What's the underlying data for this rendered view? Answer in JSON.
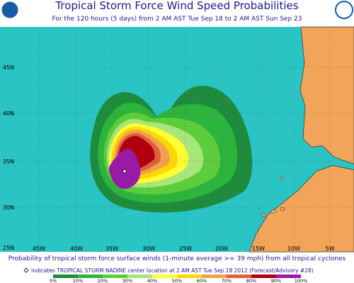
{
  "header": {
    "title": "Tropical Storm Force Wind Speed Probabilities",
    "subtitle": "For the 120 hours (5 days) from 2 AM AST Tue Sep 18 to 2 AM AST Sun Sep 23"
  },
  "map": {
    "latitude_labels": [
      "45N",
      "40N",
      "35N",
      "30N",
      "25N"
    ],
    "longitude_labels": [
      "45W",
      "40W",
      "35W",
      "30W",
      "25W",
      "20W",
      "15W",
      "10W",
      "5W"
    ]
  },
  "footer": {
    "caption": "Probability of tropical storm force surface winds (1-minute average >= 39 mph) from all tropical cyclones",
    "note": "indicates TROPICAL STORM NADINE center location at 2 AM AST Tue Sep 18 2012 (Forecast/Advisory #28)"
  },
  "legend": {
    "labels": [
      "5%",
      "10%",
      "20%",
      "30%",
      "40%",
      "50%",
      "60%",
      "70%",
      "80%",
      "90%",
      "100%"
    ],
    "colors": [
      "#1e8c3c",
      "#2db43c",
      "#5ccd3c",
      "#a6e67a",
      "#ffff33",
      "#ffd700",
      "#f0a050",
      "#e0603a",
      "#b00010",
      "#9a1aa8"
    ]
  }
}
